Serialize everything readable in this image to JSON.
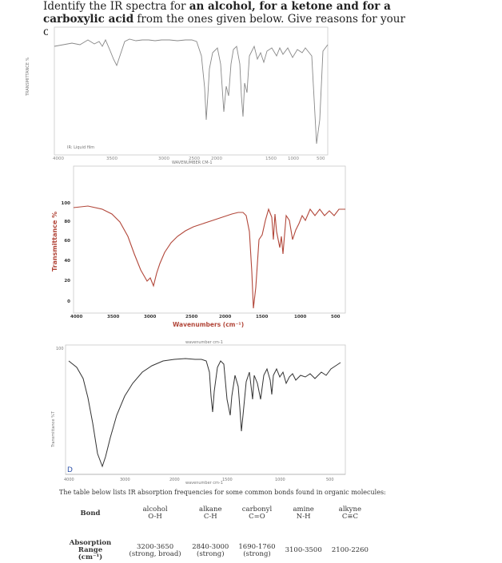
{
  "question": {
    "prefix": "Identify the IR spectra for ",
    "bold1": "an alcohol, for a ketone and for a carboxylic acid",
    "mid": " from the ones given below. Give reasons for your choice"
  },
  "spectrum_a": {
    "film_label": "IR: Liquid film",
    "x_ticks": [
      "4000",
      "3500",
      "3000",
      "2500",
      "2000",
      "1500",
      "1000",
      "500"
    ],
    "xlabel": "WAVENUMBER CM-1",
    "ylabel": "TRANSMITTANCE %"
  },
  "spectrum_b": {
    "y_ticks": [
      "100",
      "80",
      "60",
      "40",
      "20",
      "0"
    ],
    "x_ticks": [
      "4000",
      "3500",
      "3000",
      "2500",
      "2000",
      "1500",
      "1000",
      "500"
    ],
    "xlabel": "Wavenumbers (cm⁻¹)",
    "ylabel": "Transmittance %"
  },
  "spectrum_c": {
    "top_label": "wavenumber cm-1",
    "y_top": "100",
    "ylabel": "Transmittance %T",
    "panel_letter": "D",
    "x_ticks": [
      "4000",
      "3000",
      "2000",
      "1500",
      "1000",
      "500"
    ],
    "xlabel": "wavenumber cm-1"
  },
  "caption": "The table below lists IR absorption frequencies for some common bonds found in organic molecules:",
  "table": {
    "header_label": "Bond",
    "columns": [
      {
        "name": "alcohol",
        "bond": "O-H",
        "range": "3200-3650",
        "note": "(strong, broad)"
      },
      {
        "name": "alkane",
        "bond": "C-H",
        "range": "2840-3000",
        "note": "(strong)"
      },
      {
        "name": "carbonyl",
        "bond": "C=O",
        "range": "1690-1760",
        "note": "(strong)"
      },
      {
        "name": "amine",
        "bond": "N-H",
        "range": "3100-3500",
        "note": ""
      },
      {
        "name": "alkyne",
        "bond": "C≡C",
        "range": "2100-2260",
        "note": ""
      }
    ],
    "range_label": "Absorption Range",
    "range_unit": "(cm⁻¹)"
  }
}
